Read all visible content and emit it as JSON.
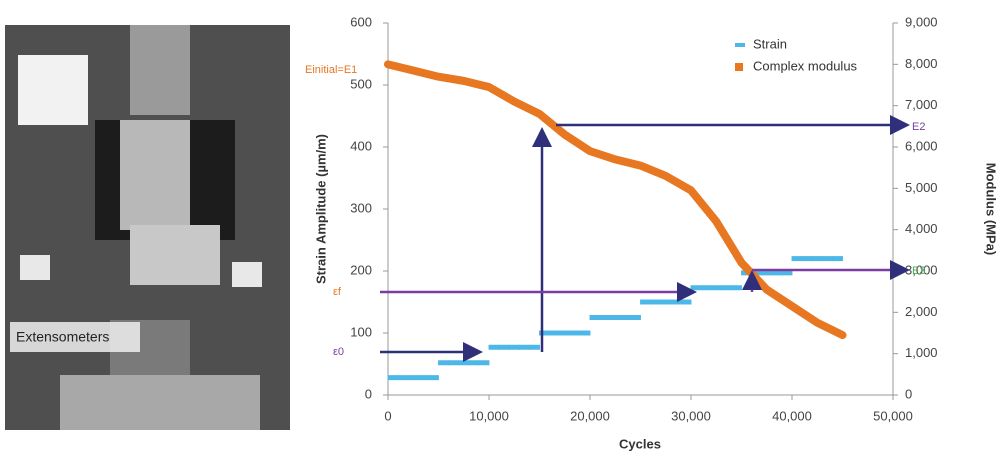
{
  "photo": {
    "label": "Extensometers"
  },
  "chart_data": {
    "type": "combo",
    "xlabel": "Cycles",
    "ylabel": "Strain Amplitude (µm/m)",
    "y2label": "Modulus (MPa)",
    "xlim": [
      0,
      50000
    ],
    "xticks": [
      0,
      {
        "value": 10000,
        "label": "10,000"
      },
      {
        "value": 20000,
        "label": "20,000"
      },
      {
        "value": 30000,
        "label": "30,000"
      },
      {
        "value": 40000,
        "label": "40,000"
      },
      {
        "value": 50000,
        "label": "50,000"
      }
    ],
    "ylim": [
      0,
      600
    ],
    "yticks": [
      0,
      100,
      200,
      300,
      400,
      500,
      600
    ],
    "y2lim": [
      0,
      9000
    ],
    "y2ticks": [
      0,
      {
        "value": 1000,
        "label": "1,000"
      },
      {
        "value": 2000,
        "label": "2,000"
      },
      {
        "value": 3000,
        "label": "3,000"
      },
      {
        "value": 4000,
        "label": "4,000"
      },
      {
        "value": 5000,
        "label": "5,000"
      },
      {
        "value": 6000,
        "label": "6,000"
      },
      {
        "value": 7000,
        "label": "7,000"
      },
      {
        "value": 8000,
        "label": "8,000"
      },
      {
        "value": 9000,
        "label": "9,000"
      }
    ],
    "legend": "top-right",
    "series": [
      {
        "name": "Strain",
        "color": "#4db8e8",
        "mark": "dash",
        "x": [
          500,
          1500,
          2500,
          3500,
          4500,
          5500,
          6500,
          7500,
          8500,
          9500,
          10500,
          11500,
          12500,
          13500,
          14500,
          15500,
          16500,
          17500,
          18500,
          19500,
          20500,
          21500,
          22500,
          23500,
          24500,
          25500,
          26500,
          27500,
          28500,
          29500,
          30500,
          31500,
          32500,
          33500,
          34500,
          35500,
          36500,
          37500,
          38500,
          39500,
          40500,
          41500,
          42500,
          43500,
          44500
        ],
        "values": [
          28,
          28,
          28,
          28,
          28,
          52,
          52,
          52,
          52,
          52,
          77,
          77,
          77,
          77,
          77,
          100,
          100,
          100,
          100,
          100,
          125,
          125,
          125,
          125,
          125,
          150,
          150,
          150,
          150,
          150,
          173,
          173,
          173,
          173,
          173,
          197,
          197,
          197,
          197,
          197,
          220,
          220,
          220,
          220,
          220
        ]
      },
      {
        "name": "Complex modulus",
        "color": "#e87722",
        "mark": "band",
        "axis": "y2",
        "x": [
          0,
          2500,
          5000,
          7500,
          10000,
          12500,
          15000,
          17500,
          20000,
          22500,
          25000,
          27500,
          30000,
          32500,
          35000,
          37500,
          40000,
          42500,
          45000
        ],
        "values": [
          8000,
          7850,
          7700,
          7600,
          7450,
          7100,
          6800,
          6300,
          5900,
          5700,
          5550,
          5300,
          4950,
          4200,
          3200,
          2550,
          2150,
          1750,
          1450
        ]
      }
    ],
    "annotations": [
      "Einitial=E1",
      "E2",
      "E3",
      "εf",
      "ε0"
    ]
  }
}
